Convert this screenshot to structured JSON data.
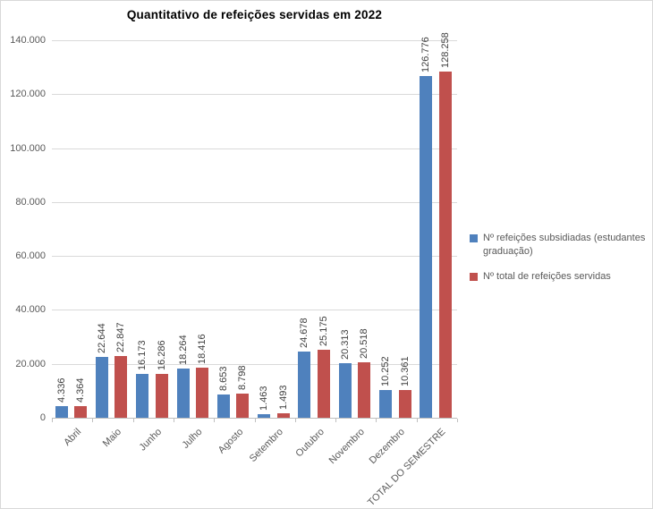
{
  "chart_data": {
    "type": "bar",
    "title": "Quantitativo de refeições servidas em 2022",
    "categories": [
      "Abril",
      "Maio",
      "Junho",
      "Julho",
      "Agosto",
      "Setembro",
      "Outubro",
      "Novembro",
      "Dezembro",
      "TOTAL DO SEMESTRE"
    ],
    "series": [
      {
        "name": "Nº refeições subsidiadas (estudantes graduação)",
        "color": "#4F81BD",
        "values": [
          4336,
          22644,
          16173,
          18264,
          8653,
          1463,
          24678,
          20313,
          10252,
          126776
        ],
        "labels": [
          "4.336",
          "22.644",
          "16.173",
          "18.264",
          "8.653",
          "1.463",
          "24.678",
          "20.313",
          "10.252",
          "126.776"
        ]
      },
      {
        "name": "Nº total de refeições servidas",
        "color": "#C0504D",
        "values": [
          4364,
          22847,
          16286,
          18416,
          8798,
          1493,
          25175,
          20518,
          10361,
          128258
        ],
        "labels": [
          "4.364",
          "22.847",
          "16.286",
          "18.416",
          "8.798",
          "1.493",
          "25.175",
          "20.518",
          "10.361",
          "128.258"
        ]
      }
    ],
    "xlabel": "",
    "ylabel": "",
    "ylim": [
      0,
      140000
    ],
    "ytick_step": 20000,
    "ytick_labels": [
      "0",
      "20.000",
      "40.000",
      "60.000",
      "80.000",
      "100.000",
      "120.000",
      "140.000"
    ],
    "grid": true,
    "legend_position": "right",
    "data_label_rotation": -90,
    "x_label_rotation": -45
  }
}
